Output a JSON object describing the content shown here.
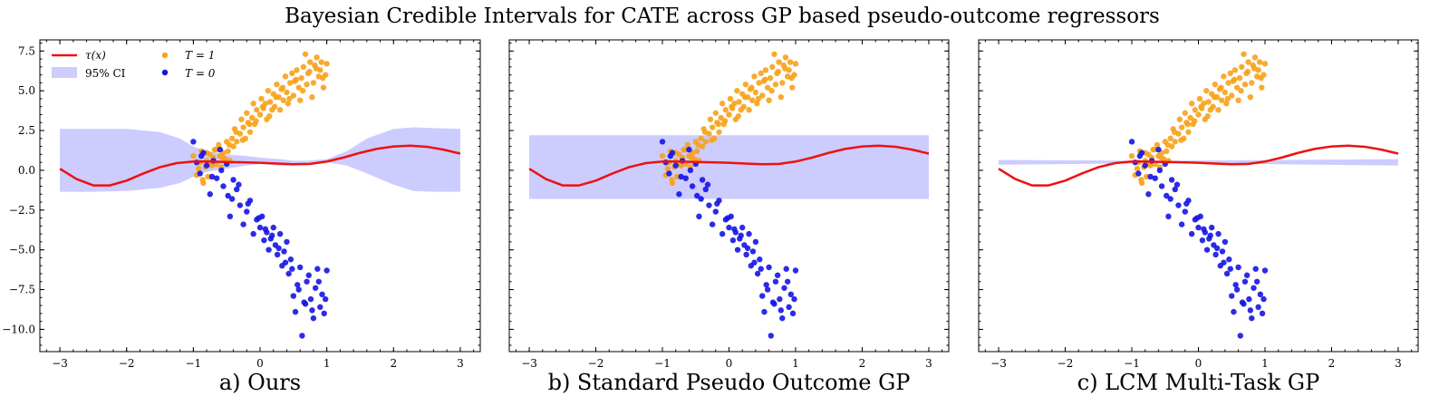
{
  "title": "Bayesian Credible Intervals for CATE across GP based pseudo-outcome regressors",
  "colors": {
    "tau_line": "#ee1111",
    "ci_fill": "#ccccff",
    "treated": "#f7a21b",
    "control": "#1414e6"
  },
  "legend": {
    "tau_label": "τ(x)",
    "ci_label": "95% CI",
    "t1_label": "T = 1",
    "t0_label": "T = 0"
  },
  "chart_data": [
    {
      "type": "scatter",
      "caption": "a) Ours",
      "xlim": [
        -3.3,
        3.3
      ],
      "ylim": [
        -11.4,
        8.2
      ],
      "xticks": [
        -3,
        -2,
        -1,
        0,
        1,
        2,
        3
      ],
      "yticks": [
        -10.0,
        -7.5,
        -5.0,
        -2.5,
        0.0,
        2.5,
        5.0,
        7.5
      ],
      "ytick_labels": [
        "−10.0",
        "−7.5",
        "−5.0",
        "−2.5",
        "0.0",
        "2.5",
        "5.0",
        "7.5"
      ],
      "show_legend": true,
      "show_yticklabels": true,
      "ci": {
        "x": [
          -3,
          -2.5,
          -2,
          -1.5,
          -1.2,
          -1,
          -0.8,
          -0.5,
          -0.2,
          0,
          0.3,
          0.5,
          0.7,
          1,
          1.3,
          1.6,
          2,
          2.3,
          2.6,
          3
        ],
        "lower": [
          -1.35,
          -1.35,
          -1.3,
          -1.1,
          -0.8,
          -0.4,
          -0.1,
          0.1,
          0.3,
          0.4,
          0.3,
          0.3,
          0.4,
          0.5,
          0.3,
          -0.2,
          -0.9,
          -1.3,
          -1.35,
          -1.35
        ],
        "upper": [
          2.6,
          2.6,
          2.6,
          2.4,
          2.0,
          1.5,
          1.2,
          1.0,
          0.9,
          0.8,
          0.7,
          0.6,
          0.6,
          0.7,
          1.2,
          2.0,
          2.6,
          2.7,
          2.65,
          2.6
        ]
      }
    },
    {
      "type": "scatter",
      "caption": "b) Standard Pseudo Outcome GP",
      "xlim": [
        -3.3,
        3.3
      ],
      "ylim": [
        -11.4,
        8.2
      ],
      "xticks": [
        -3,
        -2,
        -1,
        0,
        1,
        2,
        3
      ],
      "yticks": [
        -10.0,
        -7.5,
        -5.0,
        -2.5,
        0.0,
        2.5,
        5.0,
        7.5
      ],
      "show_legend": false,
      "show_yticklabels": false,
      "ci": {
        "x": [
          -3,
          3
        ],
        "lower": [
          -1.8,
          -1.8
        ],
        "upper": [
          2.2,
          2.2
        ]
      }
    },
    {
      "type": "scatter",
      "caption": "c) LCM Multi-Task GP",
      "xlim": [
        -3.3,
        3.3
      ],
      "ylim": [
        -11.4,
        8.2
      ],
      "xticks": [
        -3,
        -2,
        -1,
        0,
        1,
        2,
        3
      ],
      "yticks": [
        -10.0,
        -7.5,
        -5.0,
        -2.5,
        0.0,
        2.5,
        5.0,
        7.5
      ],
      "show_legend": false,
      "show_yticklabels": false,
      "ci": {
        "x": [
          -3,
          -0.5,
          3
        ],
        "lower": [
          0.35,
          0.45,
          0.3
        ],
        "upper": [
          0.65,
          0.6,
          0.7
        ]
      }
    }
  ],
  "tau_curve": {
    "x": [
      -3.0,
      -2.75,
      -2.5,
      -2.25,
      -2.0,
      -1.75,
      -1.5,
      -1.25,
      -1.0,
      -0.75,
      -0.5,
      -0.25,
      0.0,
      0.25,
      0.5,
      0.75,
      1.0,
      1.25,
      1.5,
      1.75,
      2.0,
      2.25,
      2.5,
      2.75,
      3.0
    ],
    "y": [
      0.1,
      -0.55,
      -0.95,
      -0.95,
      -0.65,
      -0.2,
      0.2,
      0.45,
      0.55,
      0.55,
      0.52,
      0.5,
      0.47,
      0.42,
      0.38,
      0.4,
      0.55,
      0.8,
      1.1,
      1.35,
      1.5,
      1.55,
      1.48,
      1.3,
      1.05
    ]
  },
  "treated_points": {
    "x": [
      -1.0,
      -0.95,
      -0.9,
      -0.88,
      -0.85,
      -0.82,
      -0.8,
      -0.78,
      -0.75,
      -0.72,
      -0.7,
      -0.68,
      -0.65,
      -0.62,
      -0.6,
      -0.58,
      -0.55,
      -0.52,
      -0.5,
      -0.48,
      -0.45,
      -0.42,
      -0.4,
      -0.38,
      -0.35,
      -0.3,
      -0.28,
      -0.25,
      -0.22,
      -0.2,
      -0.18,
      -0.15,
      -0.12,
      -0.1,
      -0.08,
      -0.05,
      0.0,
      0.02,
      0.05,
      0.08,
      0.1,
      0.12,
      0.15,
      0.18,
      0.2,
      0.22,
      0.25,
      0.28,
      0.3,
      0.32,
      0.35,
      0.38,
      0.4,
      0.42,
      0.45,
      0.48,
      0.5,
      0.52,
      0.55,
      0.58,
      0.6,
      0.62,
      0.65,
      0.68,
      0.7,
      0.72,
      0.75,
      0.78,
      0.8,
      0.82,
      0.85,
      0.88,
      0.9,
      0.92,
      0.95,
      0.98,
      1.0,
      -0.92,
      -0.86,
      -0.8,
      -0.74,
      -0.66,
      -0.56,
      -0.46,
      -0.36,
      -0.26,
      -0.16,
      -0.06,
      0.04,
      0.14,
      0.24,
      0.34,
      0.44,
      0.54,
      0.64,
      0.74,
      0.84,
      0.94
    ],
    "y": [
      0.9,
      -0.3,
      0.5,
      1.2,
      -0.8,
      0.2,
      0.6,
      -0.4,
      1.0,
      0.3,
      0.8,
      1.3,
      0.4,
      1.6,
      0.9,
      0.2,
      1.1,
      0.7,
      1.8,
      1.2,
      0.6,
      2.0,
      1.5,
      2.6,
      1.8,
      2.3,
      3.2,
      2.7,
      2.0,
      3.6,
      3.0,
      2.4,
      3.3,
      4.2,
      2.9,
      3.8,
      3.5,
      4.5,
      3.9,
      4.2,
      3.2,
      5.0,
      4.3,
      3.8,
      4.8,
      4.0,
      5.4,
      4.6,
      3.8,
      5.1,
      4.4,
      5.9,
      4.9,
      4.2,
      5.5,
      6.1,
      4.7,
      5.6,
      6.3,
      5.2,
      4.4,
      5.8,
      6.5,
      7.3,
      5.4,
      6.1,
      6.8,
      4.6,
      5.5,
      6.6,
      7.1,
      5.9,
      6.3,
      6.8,
      5.2,
      6.0,
      6.7,
      0.1,
      -0.6,
      1.1,
      0.4,
      1.3,
      0.8,
      1.6,
      2.4,
      1.9,
      2.9,
      3.1,
      4.0,
      3.4,
      4.6,
      5.2,
      4.5,
      5.7,
      5.0,
      6.2,
      6.4,
      5.8
    ]
  },
  "control_points": {
    "x": [
      -1.0,
      -0.95,
      -0.9,
      -0.85,
      -0.8,
      -0.75,
      -0.7,
      -0.65,
      -0.6,
      -0.55,
      -0.5,
      -0.45,
      -0.42,
      -0.4,
      -0.35,
      -0.3,
      -0.25,
      -0.2,
      -0.15,
      -0.1,
      -0.05,
      0.0,
      0.03,
      0.06,
      0.1,
      0.13,
      0.16,
      0.2,
      0.23,
      0.26,
      0.3,
      0.33,
      0.36,
      0.4,
      0.43,
      0.46,
      0.5,
      0.53,
      0.56,
      0.6,
      0.63,
      0.66,
      0.7,
      0.73,
      0.76,
      0.8,
      0.83,
      0.86,
      0.9,
      0.93,
      0.96,
      1.0,
      -0.88,
      -0.72,
      -0.58,
      -0.48,
      -0.32,
      -0.18,
      -0.02,
      0.08,
      0.18,
      0.28,
      0.38,
      0.48,
      0.58,
      0.68,
      0.78,
      0.88,
      0.98
    ],
    "y": [
      1.8,
      0.5,
      -0.2,
      1.1,
      0.3,
      -1.5,
      0.6,
      -0.5,
      1.3,
      -1.0,
      0.4,
      -2.9,
      -1.8,
      -0.6,
      -1.2,
      -2.2,
      -3.4,
      -2.6,
      -1.9,
      -4.0,
      -3.1,
      -3.6,
      -2.9,
      -4.4,
      -3.9,
      -5.0,
      -4.3,
      -3.6,
      -4.7,
      -5.3,
      -4.0,
      -6.0,
      -5.1,
      -4.5,
      -6.5,
      -5.6,
      -7.9,
      -8.9,
      -7.2,
      -6.1,
      -10.4,
      -8.3,
      -7.0,
      -6.6,
      -8.1,
      -9.3,
      -7.4,
      -6.2,
      -8.6,
      -7.8,
      -9.0,
      -6.3,
      0.9,
      -0.4,
      0.0,
      -1.6,
      -0.9,
      -2.1,
      -3.0,
      -3.7,
      -4.1,
      -4.9,
      -5.8,
      -6.2,
      -7.5,
      -8.4,
      -8.8,
      -7.0,
      -8.1
    ]
  }
}
